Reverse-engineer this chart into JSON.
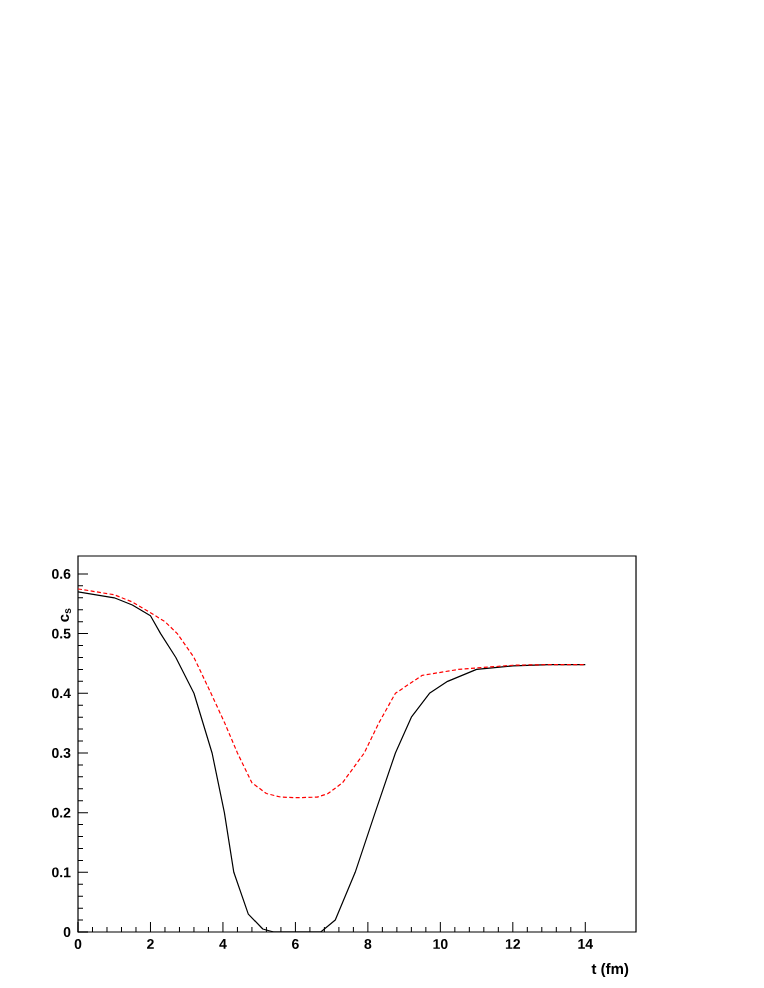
{
  "chart_data": {
    "type": "line",
    "xlabel": "t (fm)",
    "ylabel": "c$_{s}$",
    "xlim": [
      0,
      15.4
    ],
    "ylim": [
      0,
      0.63
    ],
    "xticks": [
      0,
      2,
      4,
      6,
      8,
      10,
      12,
      14
    ],
    "yticks": [
      0,
      0.1,
      0.2,
      0.3,
      0.4,
      0.5,
      0.6
    ],
    "grid": false,
    "marker": "none",
    "series": [
      {
        "color": "#000000",
        "line_style": "solid",
        "x": [
          0,
          1,
          1.5,
          2,
          2.28,
          2.7,
          3.2,
          3.7,
          4.04,
          4.3,
          4.7,
          5.1,
          5.4,
          6,
          6.7,
          7.1,
          7.65,
          8.2,
          8.76,
          9.2,
          9.7,
          10.2,
          11,
          12,
          13,
          14
        ],
        "values": [
          0.57,
          0.56,
          0.548,
          0.53,
          0.5,
          0.46,
          0.4,
          0.3,
          0.2,
          0.1,
          0.03,
          0.005,
          0,
          0,
          0,
          0.02,
          0.1,
          0.2,
          0.3,
          0.36,
          0.4,
          0.42,
          0.44,
          0.446,
          0.448,
          0.448
        ]
      },
      {
        "color": "#ff0000",
        "line_style": "dashed",
        "x": [
          0,
          1,
          1.5,
          2,
          2.4,
          2.74,
          3.2,
          3.67,
          4.05,
          4.4,
          4.8,
          5.2,
          5.6,
          6,
          6.6,
          6.9,
          7.3,
          7.9,
          8.3,
          8.76,
          9.5,
          10.5,
          12,
          13,
          14
        ],
        "values": [
          0.575,
          0.565,
          0.553,
          0.535,
          0.52,
          0.5,
          0.46,
          0.4,
          0.35,
          0.3,
          0.25,
          0.232,
          0.226,
          0.225,
          0.226,
          0.232,
          0.25,
          0.3,
          0.35,
          0.4,
          0.43,
          0.44,
          0.447,
          0.448,
          0.448
        ]
      }
    ]
  }
}
